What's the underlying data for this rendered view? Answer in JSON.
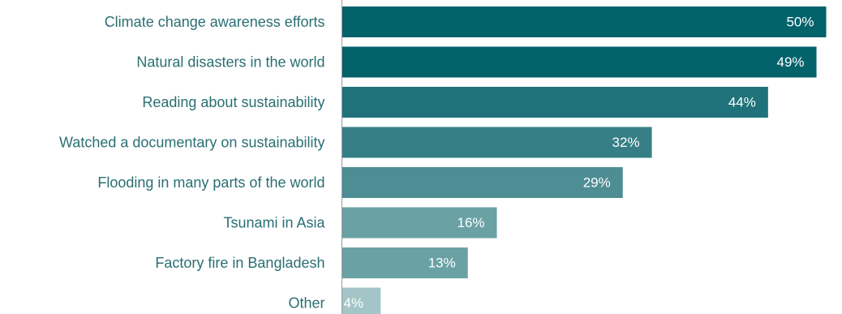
{
  "chart_data": {
    "type": "bar",
    "orientation": "horizontal",
    "title": "",
    "xlabel": "",
    "ylabel": "",
    "xlim": [
      0,
      50
    ],
    "grid": false,
    "legend": "none",
    "value_suffix": "%",
    "categories": [
      "Climate change awareness efforts",
      "Natural disasters in the world",
      "Reading about sustainability",
      "Watched a documentary on sustainability",
      "Flooding in many parts of the world",
      "Tsunami in Asia",
      "Factory fire in Bangladesh",
      "Other"
    ],
    "values": [
      50,
      49,
      44,
      32,
      29,
      16,
      13,
      4
    ],
    "value_labels": [
      "50%",
      "49%",
      "44%",
      "32%",
      "29%",
      "16%",
      "13%",
      "4%"
    ],
    "colors": [
      "#03626a",
      "#03626a",
      "#1f727a",
      "#377f86",
      "#4f8d94",
      "#6aa1a5",
      "#6aa1a5",
      "#a3c5c7"
    ]
  }
}
